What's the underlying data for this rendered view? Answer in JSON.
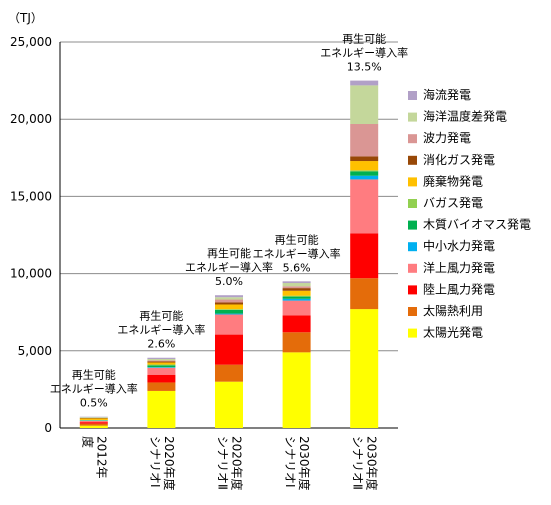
{
  "chart_data": {
    "type": "bar",
    "stacked": true,
    "unit_label": "（TJ）",
    "ylim": [
      0,
      25000
    ],
    "yticks": [
      "0",
      "5,000",
      "10,000",
      "15,000",
      "20,000",
      "25,000"
    ],
    "ytick_values": [
      0,
      5000,
      10000,
      15000,
      20000,
      25000
    ],
    "grid": true,
    "legend_position": "right",
    "categories": [
      [
        "2012年",
        "度"
      ],
      [
        "2020年度",
        "シナリオⅠ"
      ],
      [
        "2020年度",
        "シナリオⅡ"
      ],
      [
        "2030年度",
        "シナリオⅠ"
      ],
      [
        "2030年度",
        "シナリオⅡ"
      ]
    ],
    "annotations": [
      {
        "line1": "再生可能",
        "line2": "エネルギー導入率",
        "value": "0.5%"
      },
      {
        "line1": "再生可能",
        "line2": "エネルギー導入率",
        "value": "2.6%"
      },
      {
        "line1": "再生可能",
        "line2": "エネルギー導入率",
        "value": "5.0%"
      },
      {
        "line1": "再生可能",
        "line2": "エネルギー導入率",
        "value": "5.6%"
      },
      {
        "line1": "再生可能",
        "line2": "エネルギー導入率",
        "value": "13.5%"
      }
    ],
    "series": [
      {
        "name": "太陽光発電",
        "color": "#FFFF00",
        "values": [
          150,
          2400,
          3000,
          4900,
          7700
        ]
      },
      {
        "name": "太陽熱利用",
        "color": "#E46C0A",
        "values": [
          130,
          550,
          1100,
          1300,
          2000
        ]
      },
      {
        "name": "陸上風力発電",
        "color": "#FF0000",
        "values": [
          100,
          500,
          1950,
          1100,
          2900
        ]
      },
      {
        "name": "洋上風力発電",
        "color": "#FF7C80",
        "values": [
          80,
          450,
          1300,
          950,
          3500
        ]
      },
      {
        "name": "中小水力発電",
        "color": "#00B0F0",
        "values": [
          20,
          40,
          60,
          120,
          240
        ]
      },
      {
        "name": "木質バイオマス発電",
        "color": "#00B050",
        "values": [
          20,
          120,
          240,
          140,
          280
        ]
      },
      {
        "name": "バガス発電",
        "color": "#92D050",
        "values": [
          20,
          50,
          50,
          60,
          70
        ]
      },
      {
        "name": "廃棄物発電",
        "color": "#FFC000",
        "values": [
          100,
          130,
          300,
          320,
          600
        ]
      },
      {
        "name": "消化ガス発電",
        "color": "#984807",
        "values": [
          30,
          80,
          130,
          170,
          300
        ]
      },
      {
        "name": "波力発電",
        "color": "#DA9694",
        "values": [
          0,
          60,
          190,
          120,
          2100
        ]
      },
      {
        "name": "海洋温度差発電",
        "color": "#C4D79B",
        "values": [
          50,
          90,
          150,
          210,
          2500
        ]
      },
      {
        "name": "海流発電",
        "color": "#B1A0C7",
        "values": [
          30,
          80,
          130,
          110,
          310
        ]
      }
    ]
  }
}
